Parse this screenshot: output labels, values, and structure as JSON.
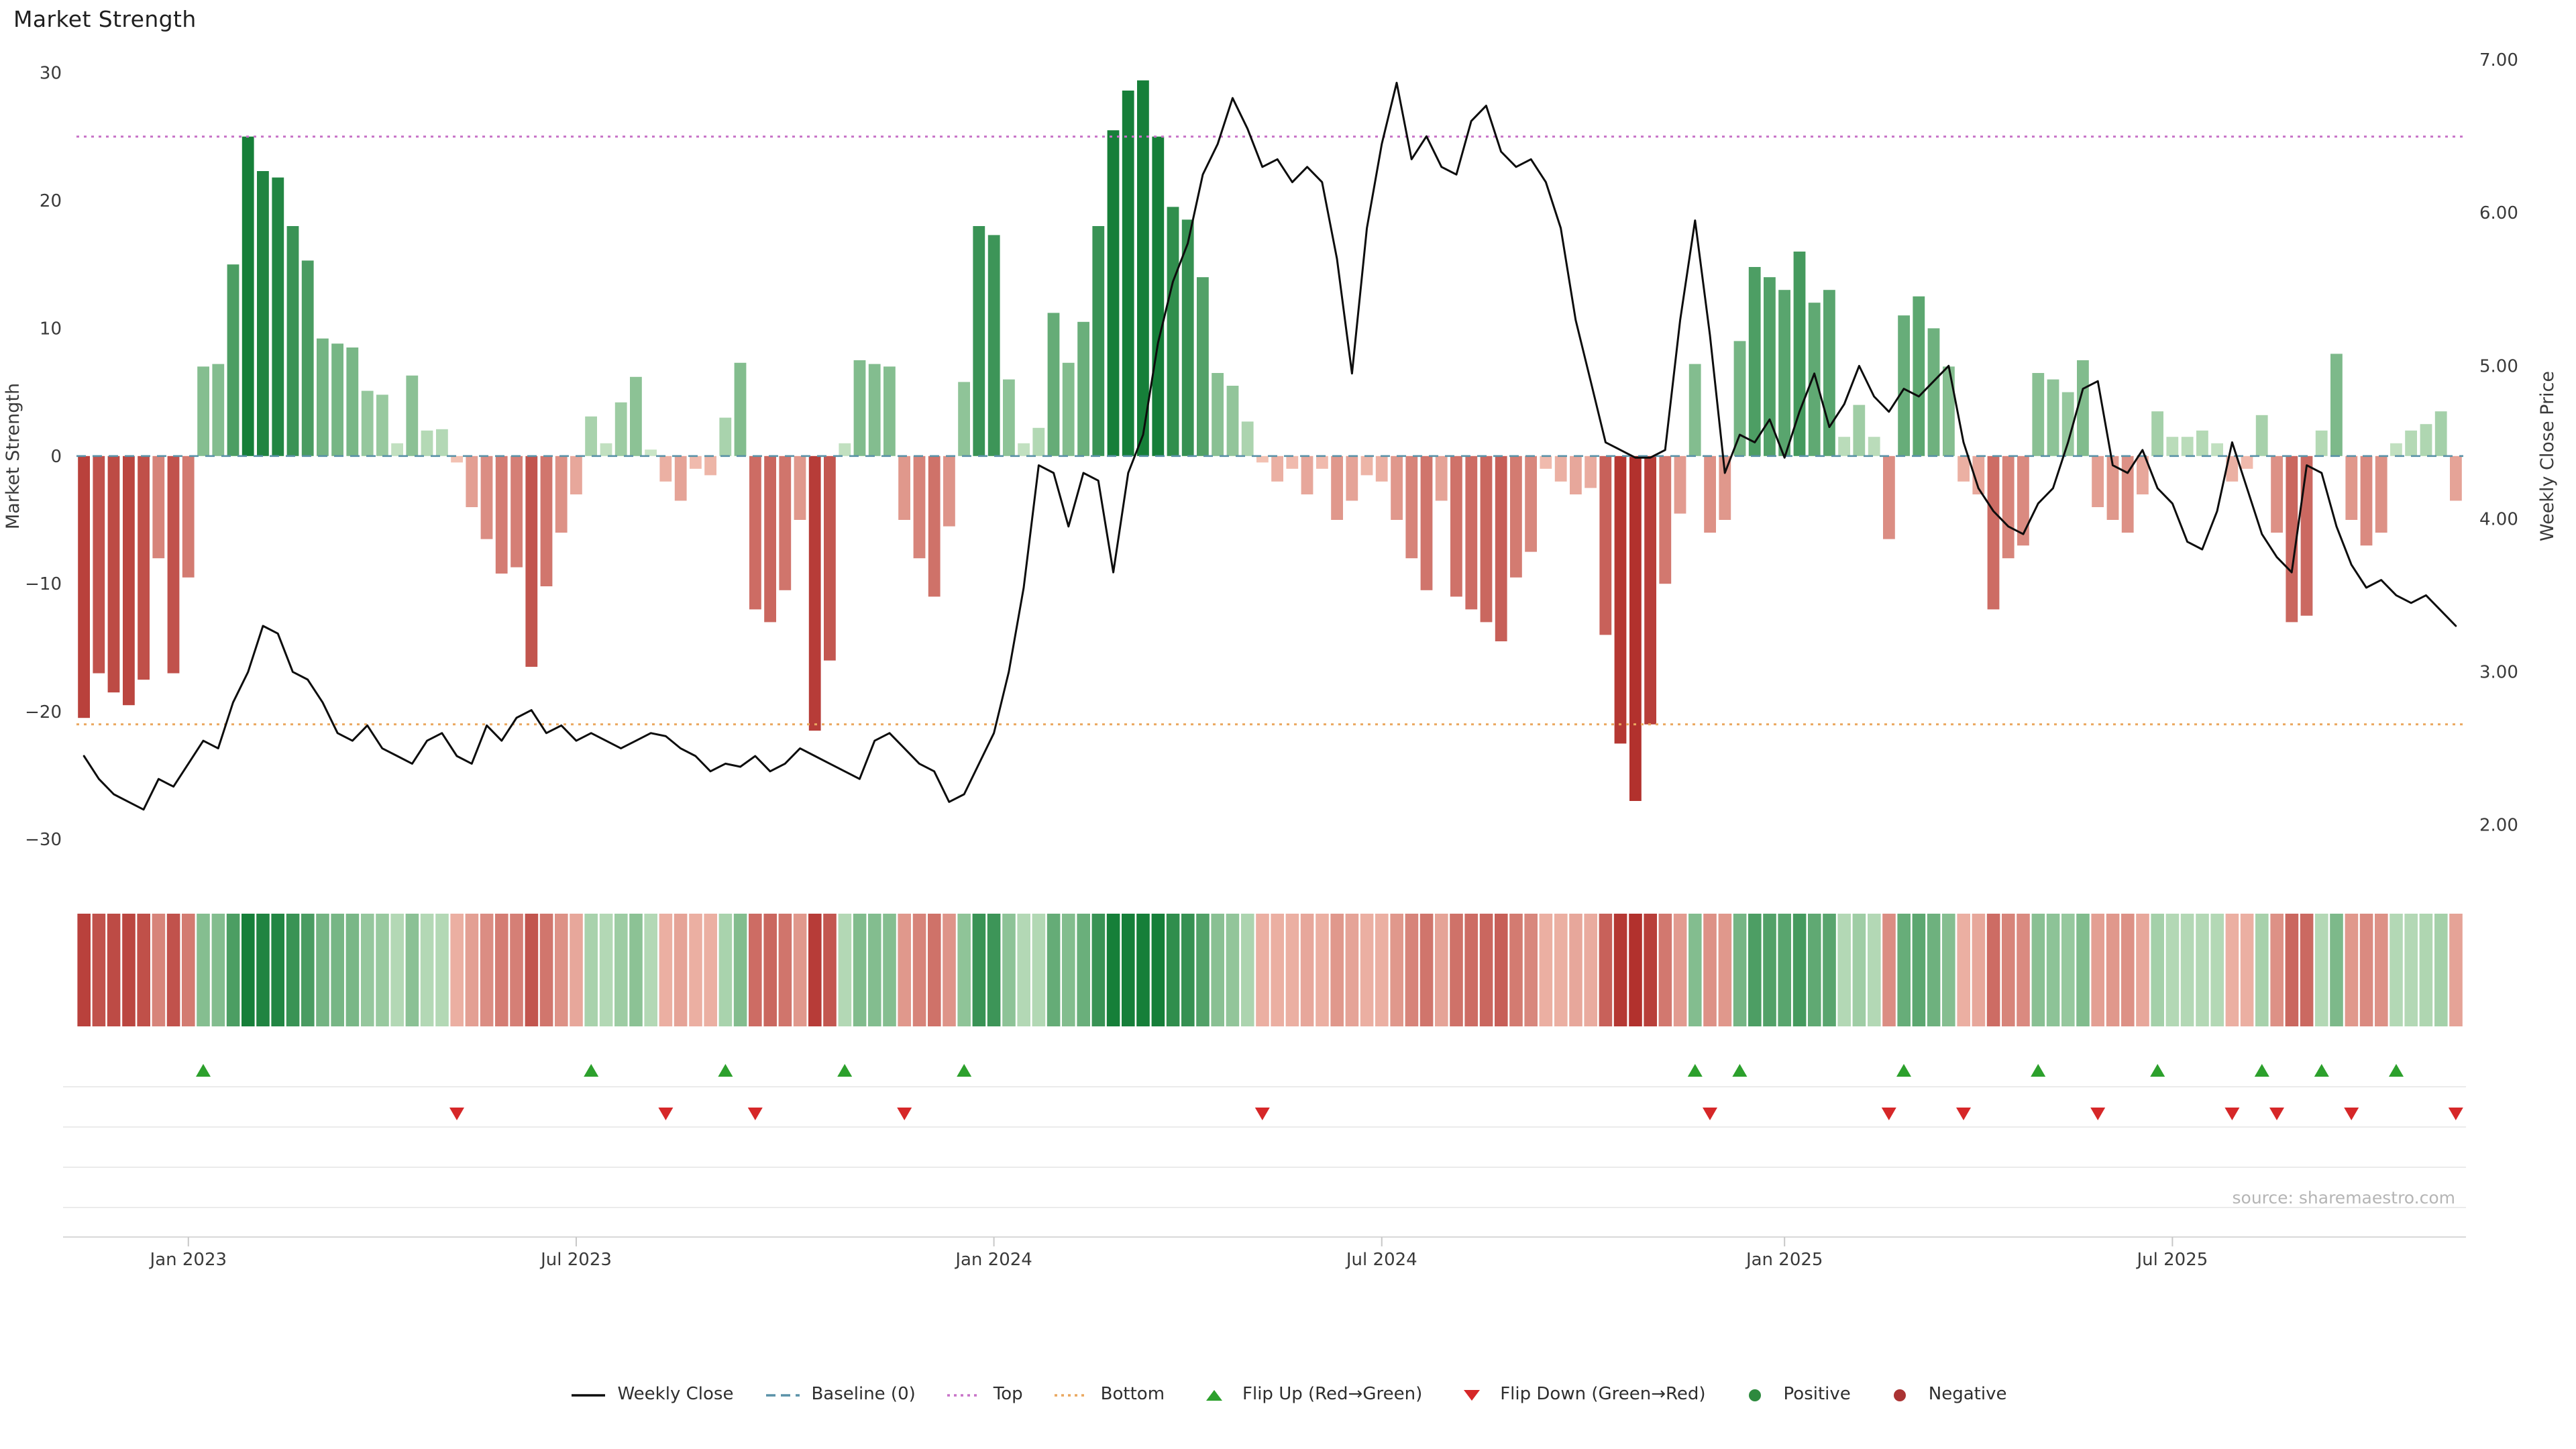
{
  "title": "Market Strength",
  "source": "source: sharemaestro.com",
  "axes": {
    "left": {
      "label": "Market Strength",
      "ticks": [
        "30",
        "20",
        "10",
        "0",
        "−10",
        "−20",
        "−30"
      ],
      "tick_values": [
        30,
        20,
        10,
        0,
        -10,
        -20,
        -30
      ],
      "range": [
        -30,
        30
      ]
    },
    "right": {
      "label": "Weekly Close Price",
      "ticks": [
        "7.00",
        "6.00",
        "5.00",
        "4.00",
        "3.00",
        "2.00"
      ],
      "tick_values": [
        7,
        6,
        5,
        4,
        3,
        2
      ],
      "range": [
        2,
        7
      ]
    },
    "x": {
      "ticks": [
        {
          "label": "Jan 2023",
          "index": 7
        },
        {
          "label": "Jul 2023",
          "index": 33
        },
        {
          "label": "Jan 2024",
          "index": 61
        },
        {
          "label": "Jul 2024",
          "index": 87
        },
        {
          "label": "Jan 2025",
          "index": 114
        },
        {
          "label": "Jul 2025",
          "index": 140
        }
      ]
    }
  },
  "colors": {
    "price_line": "#0d0d0d",
    "baseline": "#5a92a8",
    "top_line": "#c873c8",
    "bottom_line": "#eaa75f",
    "flip_up": "#2ca02c",
    "flip_down": "#d62728",
    "positive_strong": "#167f39",
    "positive_weak": "#d6ecd0",
    "negative_strong": "#b2312d",
    "negative_weak": "#f7cbbc",
    "lane_grid": "#ebebeb",
    "axis_line": "#d9d9d9",
    "tick_text": "#3a3a3a",
    "source_text": "#b5b5b5"
  },
  "legend": {
    "items": [
      {
        "label": "Weekly Close",
        "swatch": "line-solid",
        "color": "#0d0d0d"
      },
      {
        "label": "Baseline (0)",
        "swatch": "line-dashed",
        "color": "#5a92a8"
      },
      {
        "label": "Top",
        "swatch": "line-dotted",
        "color": "#c873c8"
      },
      {
        "label": "Bottom",
        "swatch": "line-dotted",
        "color": "#eaa75f"
      },
      {
        "label": "Flip Up (Red→Green)",
        "swatch": "triangle-up",
        "color": "#2ca02c"
      },
      {
        "label": "Flip Down (Green→Red)",
        "swatch": "triangle-down",
        "color": "#d62728"
      },
      {
        "label": "Positive",
        "swatch": "dot",
        "color": "#2d8a3e"
      },
      {
        "label": "Negative",
        "swatch": "dot",
        "color": "#aa3333"
      }
    ]
  },
  "chart_data": {
    "type": "bar",
    "title": "Market Strength",
    "x_unit": "weekly (Dec 2022 - Nov 2025)",
    "n_points": 160,
    "xlabel": "",
    "ylabel_left": "Market Strength",
    "ylabel_right": "Weekly Close Price",
    "ylim_left": [
      -30,
      30
    ],
    "ylim_right": [
      2,
      7
    ],
    "grid": false,
    "legend_position": "bottom-center",
    "x_tick_labels": [
      "Jan 2023",
      "Jul 2023",
      "Jan 2024",
      "Jul 2024",
      "Jan 2025",
      "Jul 2025"
    ],
    "x_tick_indices": [
      7,
      33,
      61,
      87,
      114,
      140
    ],
    "reference_lines": [
      {
        "name": "Baseline (0)",
        "value": 0,
        "style": "dashed",
        "color": "#5a92a8"
      },
      {
        "name": "Top",
        "value": 25,
        "style": "dotted",
        "color": "#c873c8"
      },
      {
        "name": "Bottom",
        "value": -21,
        "style": "dotted",
        "color": "#eaa75f"
      }
    ],
    "series": [
      {
        "name": "Market Strength",
        "type": "bar",
        "axis": "left",
        "colormap": "red-negative to green-positive, intensity scales with magnitude",
        "values": [
          -20.5,
          -17,
          -18.5,
          -19.5,
          -17.5,
          -8,
          -17,
          -9.5,
          7,
          7.2,
          15,
          25,
          22.3,
          21.8,
          18,
          15.3,
          9.2,
          8.8,
          8.5,
          5.1,
          4.8,
          1,
          6.3,
          2,
          2.1,
          -0.5,
          -4,
          -6.5,
          -9.2,
          -8.7,
          -16.5,
          -10.2,
          -6,
          -3,
          3.1,
          1,
          4.2,
          6.2,
          0.5,
          -2,
          -3.5,
          -1,
          -1.5,
          3,
          7.3,
          -12,
          -13,
          -10.5,
          -5,
          -21.5,
          -16,
          1,
          7.5,
          7.2,
          7,
          -5,
          -8,
          -11,
          -5.5,
          5.8,
          18,
          17.3,
          6,
          1,
          2.2,
          11.2,
          7.3,
          10.5,
          18,
          25.5,
          28.6,
          29.4,
          25,
          19.5,
          18.5,
          14,
          6.5,
          5.5,
          2.7,
          -0.5,
          -2,
          -1,
          -3,
          -1,
          -5,
          -3.5,
          -1.5,
          -2,
          -5,
          -8,
          -10.5,
          -3.5,
          -11,
          -12,
          -13,
          -14.5,
          -9.5,
          -7.5,
          -1,
          -2,
          -3,
          -2.5,
          -14,
          -22.5,
          -27,
          -21,
          -10,
          -4.5,
          7.2,
          -6,
          -5,
          9,
          14.8,
          14,
          13,
          16,
          12,
          13,
          1.5,
          4,
          1.5,
          -6.5,
          11,
          12.5,
          10,
          7,
          -2,
          -3,
          -12,
          -8,
          -7,
          6.5,
          6,
          5,
          7.5,
          -4,
          -5,
          -6,
          -3,
          3.5,
          1.5,
          1.5,
          2,
          1,
          -2,
          -1,
          3.2,
          -6,
          -13,
          -12.5,
          2,
          8,
          -5,
          -7,
          -6,
          1,
          2,
          2.5,
          3.5,
          -3.5
        ]
      },
      {
        "name": "Weekly Close",
        "type": "line",
        "axis": "right",
        "color": "#0d0d0d",
        "values": [
          2.45,
          2.3,
          2.2,
          2.15,
          2.1,
          2.3,
          2.25,
          2.4,
          2.55,
          2.5,
          2.8,
          3.0,
          3.3,
          3.25,
          3.0,
          2.95,
          2.8,
          2.6,
          2.55,
          2.65,
          2.5,
          2.45,
          2.4,
          2.55,
          2.6,
          2.45,
          2.4,
          2.65,
          2.55,
          2.7,
          2.75,
          2.6,
          2.65,
          2.55,
          2.6,
          2.55,
          2.5,
          2.55,
          2.6,
          2.58,
          2.5,
          2.45,
          2.35,
          2.4,
          2.38,
          2.45,
          2.35,
          2.4,
          2.5,
          2.45,
          2.4,
          2.35,
          2.3,
          2.55,
          2.6,
          2.5,
          2.4,
          2.35,
          2.15,
          2.2,
          2.4,
          2.6,
          3.0,
          3.55,
          4.35,
          4.3,
          3.95,
          4.3,
          4.25,
          3.65,
          4.3,
          4.55,
          5.15,
          5.55,
          5.8,
          6.25,
          6.45,
          6.75,
          6.55,
          6.3,
          6.35,
          6.2,
          6.3,
          6.2,
          5.7,
          4.95,
          5.9,
          6.45,
          6.85,
          6.35,
          6.5,
          6.3,
          6.25,
          6.6,
          6.7,
          6.4,
          6.3,
          6.35,
          6.2,
          5.9,
          5.3,
          4.9,
          4.5,
          4.45,
          4.4,
          4.4,
          4.45,
          5.3,
          5.95,
          5.2,
          4.3,
          4.55,
          4.5,
          4.65,
          4.4,
          4.7,
          4.95,
          4.6,
          4.75,
          5.0,
          4.8,
          4.7,
          4.85,
          4.8,
          4.9,
          5.0,
          4.5,
          4.2,
          4.05,
          3.95,
          3.9,
          4.1,
          4.2,
          4.5,
          4.85,
          4.9,
          4.35,
          4.3,
          4.45,
          4.2,
          4.1,
          3.85,
          3.8,
          4.05,
          4.5,
          4.2,
          3.9,
          3.75,
          3.65,
          4.35,
          4.3,
          3.95,
          3.7,
          3.55,
          3.6,
          3.5,
          3.45,
          3.5,
          3.4,
          3.3
        ]
      }
    ],
    "heatmap_strip": {
      "note": "color strip below main chart, one cell per week, colored with same red/green colormap as bars",
      "values_same_as": "Market Strength"
    },
    "flip_up_indices": [
      8,
      34,
      43,
      51,
      59,
      108,
      111,
      122,
      131,
      139,
      146,
      150,
      155
    ],
    "flip_down_indices": [
      25,
      39,
      45,
      55,
      79,
      109,
      121,
      126,
      135,
      144,
      147,
      152,
      159
    ]
  }
}
